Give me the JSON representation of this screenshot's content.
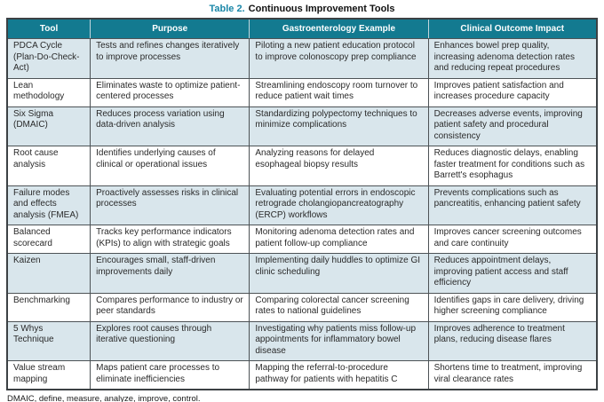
{
  "title": {
    "label": "Table 2.",
    "text": "Continuous Improvement Tools"
  },
  "colors": {
    "header_bg": "#137a90",
    "row_alt": "#d9e6ec",
    "accent": "#1a87a8"
  },
  "table": {
    "columns": [
      "Tool",
      "Purpose",
      "Gastroenterology Example",
      "Clinical Outcome Impact"
    ],
    "rows": [
      {
        "tool": "PDCA Cycle (Plan-Do-Check-Act)",
        "purpose": "Tests and refines changes iteratively to improve processes",
        "example": "Piloting a new patient education protocol to improve colonoscopy prep compliance",
        "impact": "Enhances bowel prep quality, increasing adenoma detection rates and reducing repeat procedures"
      },
      {
        "tool": "Lean methodology",
        "purpose": "Eliminates waste to optimize patient-centered processes",
        "example": "Streamlining endoscopy room turnover to reduce patient wait times",
        "impact": "Improves patient satisfaction and increases procedure capacity"
      },
      {
        "tool": "Six Sigma (DMAIC)",
        "purpose": "Reduces process variation using data-driven analysis",
        "example": "Standardizing polypectomy techniques to minimize complications",
        "impact": "Decreases adverse events, improving patient safety and procedural consistency"
      },
      {
        "tool": "Root cause analysis",
        "purpose": "Identifies underlying causes of clinical or operational issues",
        "example": "Analyzing reasons for delayed esophageal biopsy results",
        "impact": "Reduces diagnostic delays, enabling faster treatment for conditions such as Barrett's esophagus"
      },
      {
        "tool": "Failure modes and effects analysis (FMEA)",
        "purpose": "Proactively assesses risks in clinical processes",
        "example": "Evaluating potential errors in endoscopic retrograde cholangiopancreatography (ERCP) workflows",
        "impact": "Prevents complications such as pancreatitis, enhancing patient safety"
      },
      {
        "tool": "Balanced scorecard",
        "purpose": "Tracks key performance indicators (KPIs) to align with strategic goals",
        "example": "Monitoring adenoma detection rates and patient follow-up compliance",
        "impact": "Improves cancer screening outcomes and care continuity"
      },
      {
        "tool": "Kaizen",
        "purpose": "Encourages small, staff-driven improvements daily",
        "example": "Implementing daily huddles to optimize GI clinic scheduling",
        "impact": "Reduces appointment delays, improving patient access and staff efficiency"
      },
      {
        "tool": "Benchmarking",
        "purpose": "Compares performance to industry or peer standards",
        "example": "Comparing colorectal cancer screening rates to national guidelines",
        "impact": "Identifies gaps in care delivery, driving higher screening compliance"
      },
      {
        "tool": "5 Whys Technique",
        "purpose": "Explores root causes through iterative questioning",
        "example": "Investigating why patients miss follow-up appointments for inflammatory bowel disease",
        "impact": "Improves adherence to treatment plans, reducing disease flares"
      },
      {
        "tool": "Value stream mapping",
        "purpose": "Maps patient care processes to eliminate inefficiencies",
        "example": "Mapping the referral-to-procedure pathway for patients with hepatitis C",
        "impact": "Shortens time to treatment, improving viral clearance rates"
      }
    ]
  },
  "footnote": "DMAIC, define, measure, analyze, improve, control."
}
